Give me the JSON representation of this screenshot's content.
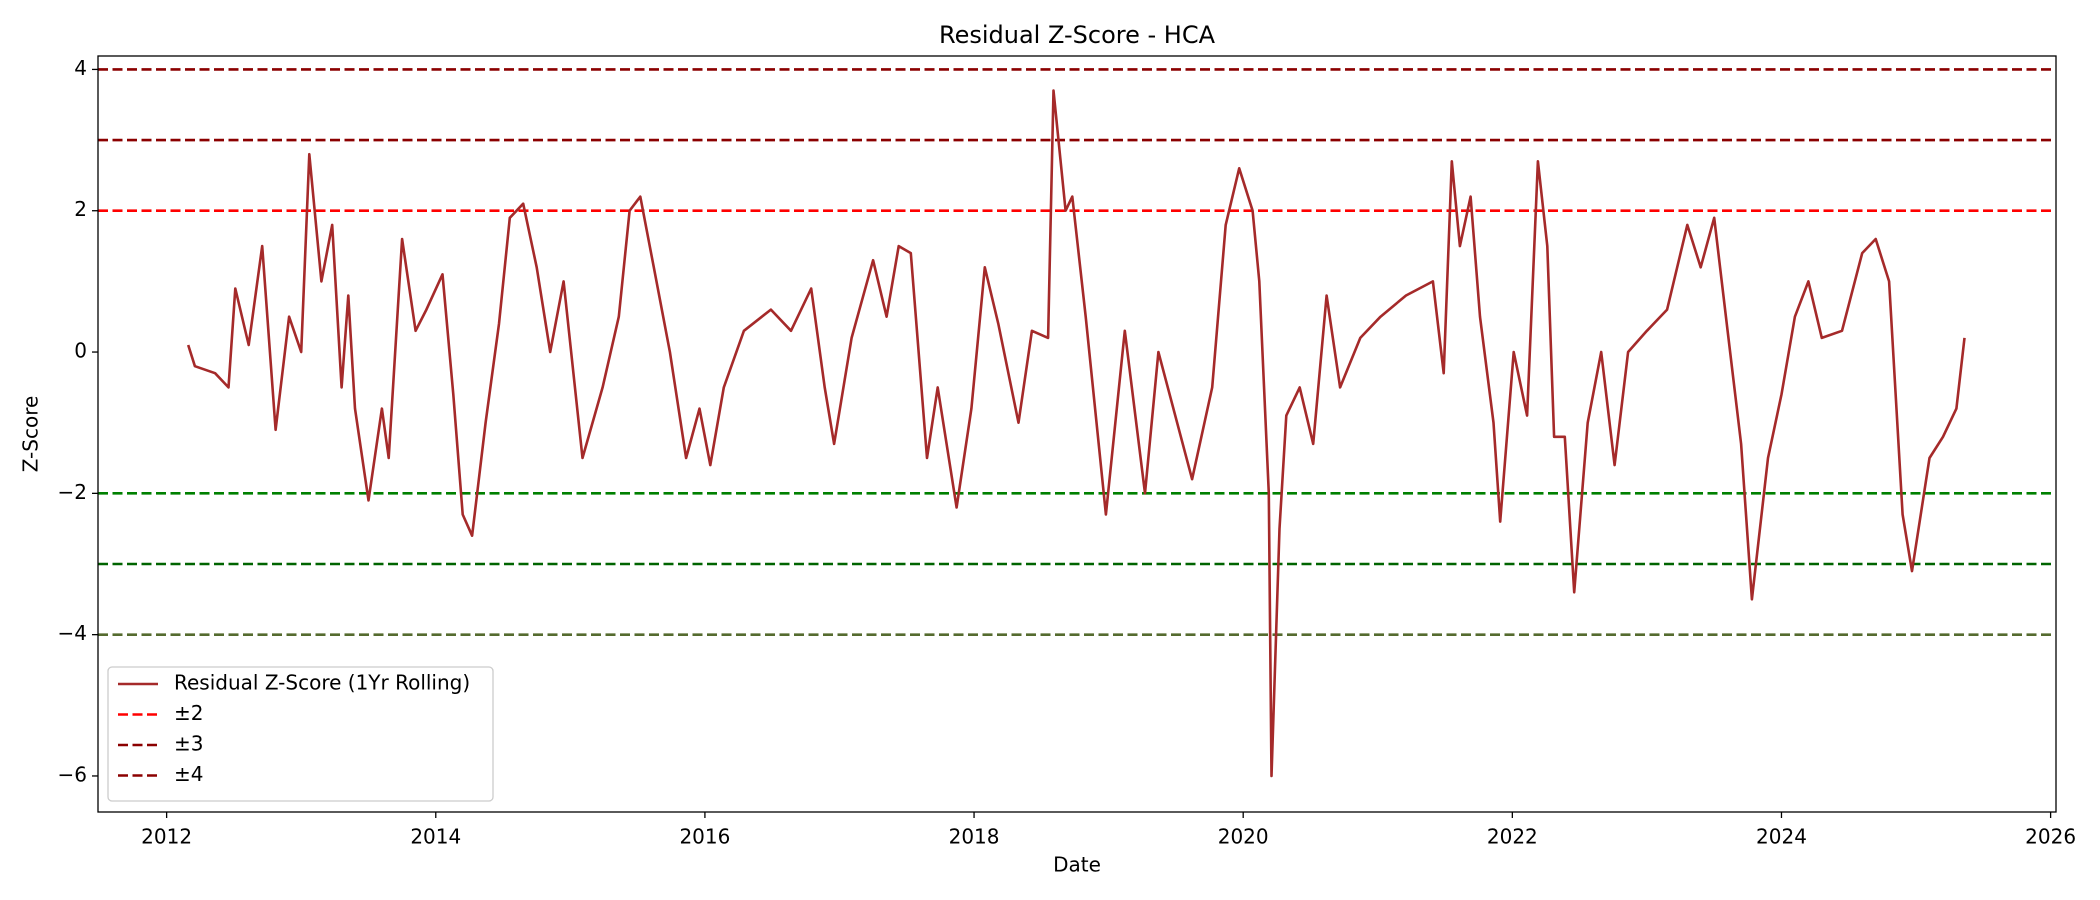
{
  "chart_data": {
    "type": "line",
    "title": "Residual Z-Score - HCA",
    "xlabel": "Date",
    "ylabel": "Z-Score",
    "xlim": [
      2011.49,
      2026.04
    ],
    "xticks": [
      2012,
      2014,
      2016,
      2018,
      2020,
      2022,
      2024,
      2026
    ],
    "ylim": [
      -6.51,
      4.19
    ],
    "yticks": [
      {
        "value": -6,
        "label": "−6"
      },
      {
        "value": -4,
        "label": "−4"
      },
      {
        "value": -2,
        "label": "−2"
      },
      0,
      2,
      4
    ],
    "legend": "lower left",
    "x": [
      2012.16,
      2012.21,
      2012.36,
      2012.46,
      2012.51,
      2012.61,
      2012.71,
      2012.81,
      2012.91,
      2013.0,
      2013.06,
      2013.15,
      2013.23,
      2013.3,
      2013.35,
      2013.4,
      2013.5,
      2013.6,
      2013.65,
      2013.75,
      2013.85,
      2013.93,
      2014.05,
      2014.13,
      2014.2,
      2014.27,
      2014.37,
      2014.47,
      2014.55,
      2014.65,
      2014.75,
      2014.85,
      2014.95,
      2015.09,
      2015.24,
      2015.36,
      2015.44,
      2015.52,
      2015.62,
      2015.74,
      2015.86,
      2015.96,
      2016.04,
      2016.14,
      2016.29,
      2016.49,
      2016.64,
      2016.79,
      2016.89,
      2016.96,
      2017.09,
      2017.25,
      2017.35,
      2017.44,
      2017.53,
      2017.65,
      2017.73,
      2017.87,
      2017.98,
      2018.08,
      2018.18,
      2018.33,
      2018.43,
      2018.55,
      2018.59,
      2018.68,
      2018.73,
      2018.83,
      2018.98,
      2019.12,
      2019.27,
      2019.37,
      2019.62,
      2019.77,
      2019.87,
      2019.97,
      2020.07,
      2020.12,
      2020.19,
      2020.21,
      2020.27,
      2020.32,
      2020.42,
      2020.52,
      2020.62,
      2020.72,
      2020.87,
      2021.02,
      2021.21,
      2021.41,
      2021.49,
      2021.55,
      2021.61,
      2021.69,
      2021.76,
      2021.86,
      2021.91,
      2022.01,
      2022.11,
      2022.19,
      2022.26,
      2022.31,
      2022.39,
      2022.46,
      2022.56,
      2022.66,
      2022.76,
      2022.86,
      2023.0,
      2023.15,
      2023.3,
      2023.4,
      2023.5,
      2023.6,
      2023.7,
      2023.78,
      2023.9,
      2024.0,
      2024.1,
      2024.2,
      2024.3,
      2024.45,
      2024.6,
      2024.7,
      2024.8,
      2024.9,
      2024.97,
      2025.1,
      2025.2,
      2025.3,
      2025.36
    ],
    "series": [
      {
        "name": "Residual Z-Score (1Yr Rolling)",
        "color": "#a52a2a",
        "values": [
          0.1,
          -0.2,
          -0.3,
          -0.5,
          0.9,
          0.1,
          1.5,
          -1.1,
          0.5,
          0,
          2.8,
          1.0,
          1.8,
          -0.5,
          0.8,
          -0.8,
          -2.1,
          -0.8,
          -1.5,
          1.6,
          0.3,
          0.6,
          1.1,
          -0.6,
          -2.3,
          -2.6,
          -1.0,
          0.4,
          1.9,
          2.1,
          1.2,
          0,
          1.0,
          -1.5,
          -0.5,
          0.5,
          2.0,
          2.2,
          1.2,
          0,
          -1.5,
          -0.8,
          -1.6,
          -0.5,
          0.3,
          0.6,
          0.3,
          0.9,
          -0.5,
          -1.3,
          0.2,
          1.3,
          0.5,
          1.5,
          1.4,
          -1.5,
          -0.5,
          -2.2,
          -0.8,
          1.2,
          0.4,
          -1.0,
          0.3,
          0.2,
          3.7,
          2.0,
          2.2,
          0.5,
          -2.3,
          0.3,
          -2.0,
          0,
          -1.8,
          -0.5,
          1.8,
          2.6,
          2.0,
          1.0,
          -2.0,
          -6.0,
          -2.5,
          -0.9,
          -0.5,
          -1.3,
          0.8,
          -0.5,
          0.2,
          0.5,
          0.8,
          1.0,
          -0.3,
          2.7,
          1.5,
          2.2,
          0.5,
          -1.0,
          -2.4,
          0,
          -0.9,
          2.7,
          1.5,
          -1.2,
          -1.2,
          -3.4,
          -1.0,
          0,
          -1.6,
          0,
          0.3,
          0.6,
          1.8,
          1.2,
          1.9,
          0.3,
          -1.3,
          -3.5,
          -1.5,
          -0.6,
          0.5,
          1.0,
          0.2,
          0.3,
          1.4,
          1.6,
          1.0,
          -2.3,
          -3.1,
          -1.5,
          -1.2,
          -0.8,
          0.2
        ]
      }
    ],
    "thresholds": [
      {
        "name": "±2",
        "values": [
          2,
          -2
        ],
        "colors": [
          "red",
          "green"
        ]
      },
      {
        "name": "±3",
        "values": [
          3,
          -3
        ],
        "colors": [
          "darkred",
          "darkgreen"
        ]
      },
      {
        "name": "±4",
        "values": [
          4,
          -4
        ],
        "colors": [
          "darkred",
          "darkolivegreen"
        ]
      }
    ]
  }
}
